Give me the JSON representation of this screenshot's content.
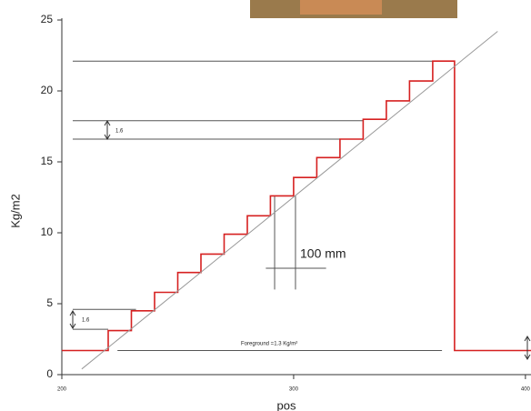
{
  "chart_data": {
    "type": "line",
    "xlabel": "pos",
    "ylabel": "Kg/m2",
    "xlim": [
      200,
      402.4
    ],
    "ylim": [
      0,
      25
    ],
    "xticks": [
      200,
      300,
      400
    ],
    "yticks": [
      0,
      5,
      10,
      15,
      20,
      25
    ],
    "series": [
      {
        "color": "#d62020",
        "x": [
          200,
          220,
          220,
          230,
          230,
          240,
          240,
          250,
          250,
          260,
          260,
          270,
          270,
          280,
          280,
          290,
          290,
          300,
          300,
          310,
          310,
          320,
          320,
          330,
          330,
          340,
          340,
          350,
          350,
          360,
          360,
          369.4,
          369.4,
          402.4
        ],
        "values": [
          1.7,
          1.7,
          3.1,
          3.1,
          4.5,
          4.5,
          5.8,
          5.8,
          7.2,
          7.2,
          8.5,
          8.5,
          9.9,
          9.9,
          11.2,
          11.2,
          12.6,
          12.6,
          13.9,
          13.9,
          15.3,
          15.3,
          16.6,
          16.6,
          18.0,
          18.0,
          19.3,
          19.3,
          20.7,
          20.7,
          22.1,
          22.1,
          1.7,
          1.7
        ]
      },
      {
        "color": "#999999",
        "x": [
          208.6,
          388
        ],
        "values": [
          0.4,
          24.2
        ]
      }
    ],
    "reference_lines": [
      {
        "x": [
          204.7,
          369.4
        ],
        "y": [
          22.1,
          22.1
        ]
      },
      {
        "x": [
          204.7,
          330
        ],
        "y": [
          17.9,
          17.9
        ]
      },
      {
        "x": [
          204.7,
          330
        ],
        "y": [
          16.6,
          16.6
        ]
      },
      {
        "x": [
          204.7,
          232
        ],
        "y": [
          4.6,
          4.6
        ]
      },
      {
        "x": [
          204.7,
          220
        ],
        "y": [
          3.2,
          3.2
        ]
      },
      {
        "x": [
          224,
          364
        ],
        "y": [
          1.7,
          1.7
        ]
      },
      {
        "x": [
          291.8,
          291.8
        ],
        "y": [
          6.0,
          12.6
        ]
      },
      {
        "x": [
          300.8,
          300.8
        ],
        "y": [
          6.0,
          12.6
        ]
      },
      {
        "x": [
          288,
          314
        ],
        "y": [
          7.5,
          7.5
        ]
      }
    ],
    "annotations": [
      "100 mm",
      "1.6",
      "1.6",
      "Foreground =1.3 Kg/m²"
    ]
  }
}
